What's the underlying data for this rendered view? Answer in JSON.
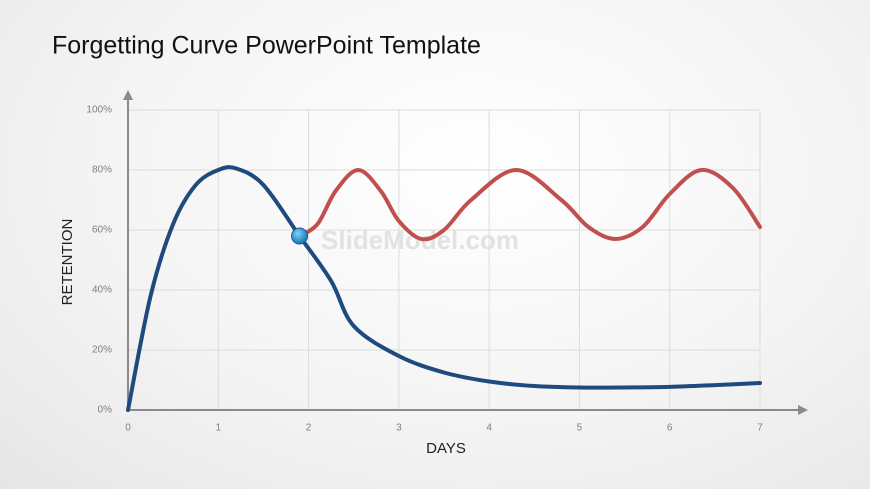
{
  "chart_data": {
    "type": "line",
    "title": "Forgetting Curve PowerPoint Template",
    "watermark": "SlideModel.com",
    "xlabel": "DAYS",
    "ylabel": "RETENTION",
    "xlim": [
      0,
      7
    ],
    "ylim": [
      0,
      100
    ],
    "xticks": [
      0,
      1,
      2,
      3,
      4,
      5,
      6,
      7
    ],
    "yticks": [
      {
        "value": 0,
        "label": "0%"
      },
      {
        "value": 20,
        "label": "20%"
      },
      {
        "value": 40,
        "label": "40%"
      },
      {
        "value": 60,
        "label": "60%"
      },
      {
        "value": 80,
        "label": "80%"
      },
      {
        "value": 100,
        "label": "100%"
      }
    ],
    "grid": true,
    "series": [
      {
        "color": "#1f4a7e",
        "x": [
          0,
          0.25,
          0.5,
          0.75,
          1,
          1.2,
          1.5,
          1.9,
          2.25,
          2.5,
          3,
          3.5,
          4,
          4.5,
          5,
          5.5,
          6,
          6.5,
          7
        ],
        "values": [
          0,
          38,
          62,
          75,
          80,
          80.5,
          75,
          58,
          43,
          28,
          18,
          12.5,
          9.5,
          8,
          7.5,
          7.5,
          7.7,
          8.3,
          9
        ]
      },
      {
        "color": "#c0504d",
        "x": [
          1.9,
          2.1,
          2.3,
          2.55,
          2.8,
          3.0,
          3.25,
          3.5,
          3.8,
          4.3,
          4.8,
          5.1,
          5.4,
          5.7,
          6.0,
          6.35,
          6.7,
          7
        ],
        "values": [
          58,
          62,
          73,
          80,
          73,
          63,
          57,
          60,
          70,
          80,
          70,
          61,
          57,
          61,
          72,
          80,
          74,
          61
        ]
      }
    ],
    "marker": {
      "x": 1.9,
      "y": 58,
      "color": "#1e90d0"
    }
  }
}
